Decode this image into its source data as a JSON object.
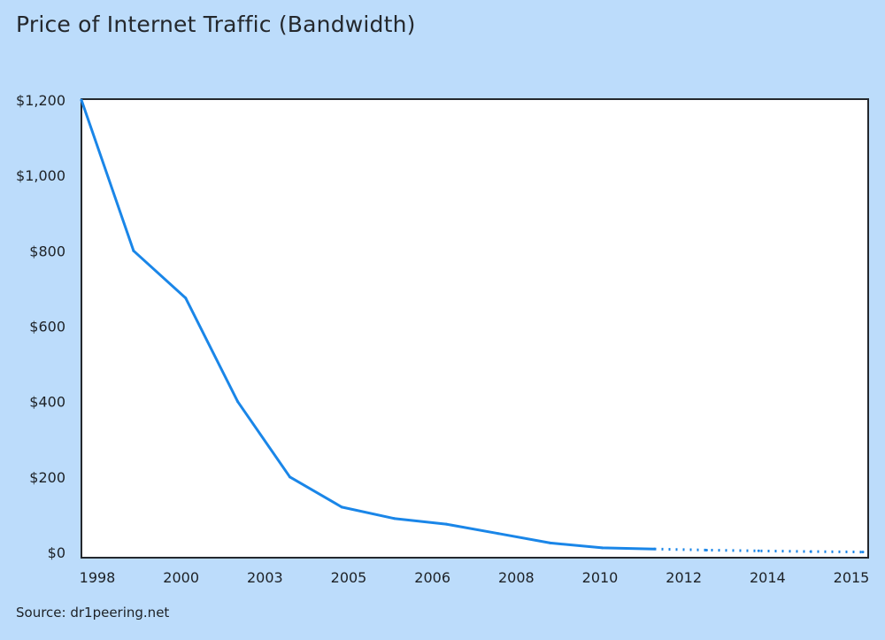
{
  "chart_data": {
    "type": "line",
    "title": "Price of Internet Traffic (Bandwidth)",
    "source": "Source: dr1peering.net",
    "categories": [
      "1998",
      "1999",
      "2000",
      "2001",
      "2003",
      "2004",
      "2005",
      "2006",
      "2007",
      "2008",
      "2010",
      "2011",
      "2012",
      "2013",
      "2014",
      "2015"
    ],
    "x_tick_labels": [
      "1998",
      "2000",
      "2003",
      "2005",
      "2006",
      "2008",
      "2010",
      "2012",
      "2014",
      "2015"
    ],
    "series": [
      {
        "values": [
          1200,
          800,
          675,
          400,
          200,
          120,
          90,
          75,
          50,
          25,
          12,
          9,
          6,
          4,
          2,
          1
        ],
        "line_style": [
          "solid",
          "solid",
          "solid",
          "solid",
          "solid",
          "solid",
          "solid",
          "solid",
          "solid",
          "solid",
          "solid",
          "solid",
          "dotted",
          "dotted",
          "dotted",
          "dotted"
        ],
        "color": "#1a86e8"
      }
    ],
    "y_tick_labels": [
      "$0",
      "$200",
      "$400",
      "$600",
      "$800",
      "$1,000",
      "$1,200"
    ],
    "ylim": [
      0,
      1200
    ],
    "grid": false,
    "legend": "none",
    "colors": {
      "background": "#bcdcfb",
      "plot_background": "#ffffff",
      "line": "#1a86e8",
      "axis": "#24282d"
    }
  }
}
